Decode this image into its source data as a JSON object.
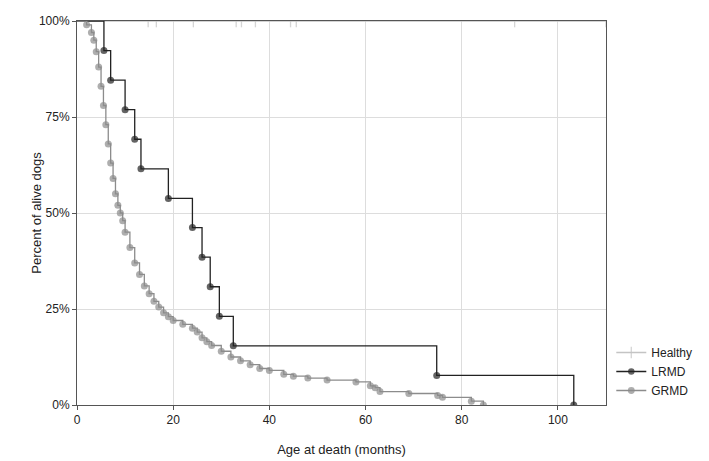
{
  "chart_data": {
    "type": "line",
    "x_label": "Age at death (months)",
    "y_label": "Percent of alive dogs",
    "xlim": [
      0,
      110
    ],
    "ylim": [
      0,
      100
    ],
    "xticks": [
      0,
      20,
      40,
      60,
      80,
      100
    ],
    "yticks": [
      {
        "value": 0,
        "label": "0%"
      },
      {
        "value": 25,
        "label": "25%"
      },
      {
        "value": 50,
        "label": "50%"
      },
      {
        "value": 75,
        "label": "75%"
      },
      {
        "value": 100,
        "label": "100%"
      }
    ],
    "grid": true,
    "legend": "bottom right",
    "series": [
      {
        "name": "Healthy",
        "color": "#c4c4c4",
        "marker": "line-ns",
        "line_style": "step",
        "x": [
          0,
          14.8,
          16.5,
          24.2,
          33.1,
          34.2,
          37.1,
          44.4,
          45.6,
          91,
          110
        ],
        "values": [
          100,
          100,
          100,
          100,
          100,
          100,
          100,
          100,
          100,
          100,
          100
        ]
      },
      {
        "name": "LRMD",
        "color": "#222222",
        "marker": "circle",
        "line_style": "step",
        "x": [
          0,
          5.6,
          7,
          10,
          12,
          13.3,
          19,
          24,
          26,
          27.7,
          29.6,
          32.5,
          74.8,
          103.3
        ],
        "values": [
          100,
          92.3,
          84.6,
          76.9,
          69.2,
          61.5,
          53.8,
          46.2,
          38.5,
          30.8,
          23.1,
          15.4,
          7.7,
          0
        ]
      },
      {
        "name": "GRMD",
        "color": "#8c8c8c",
        "marker": "circle",
        "line_style": "step",
        "x": [
          0,
          2,
          3,
          3.5,
          4,
          4.5,
          5,
          5.5,
          6,
          6.5,
          7,
          7.5,
          8,
          8.5,
          9,
          9.5,
          10,
          11,
          12,
          13,
          14,
          15,
          16,
          17,
          18,
          19,
          20,
          22,
          24,
          25,
          26,
          27,
          28,
          30,
          32,
          34,
          36,
          38,
          40,
          43,
          45,
          48,
          52,
          58,
          61,
          62,
          63,
          69,
          75,
          76,
          82,
          84.5
        ],
        "values": [
          100,
          99,
          97,
          95,
          92,
          88,
          83,
          78,
          73,
          68,
          63,
          59,
          55,
          52,
          50,
          48,
          45,
          41,
          37,
          34,
          31,
          29,
          27,
          25.5,
          24,
          23,
          22,
          21,
          20,
          19,
          17.5,
          16.5,
          15.5,
          14,
          12.5,
          11.5,
          10.5,
          9.5,
          9,
          8,
          7.5,
          7,
          6.5,
          6,
          5,
          4.5,
          3.5,
          3,
          2.5,
          2,
          1,
          0
        ]
      }
    ]
  }
}
